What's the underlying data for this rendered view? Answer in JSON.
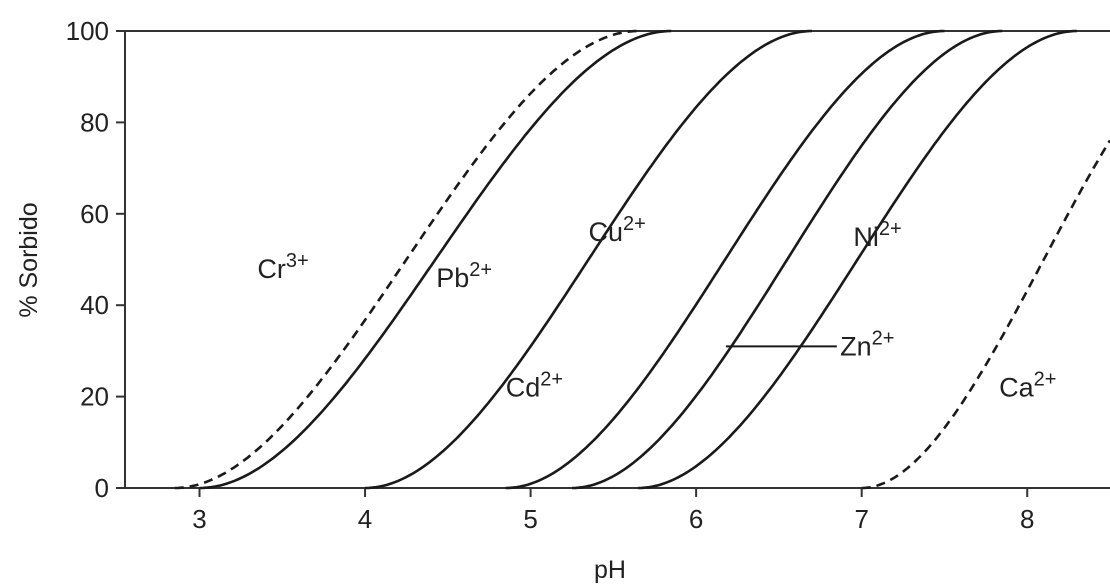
{
  "chart_data": {
    "type": "line",
    "title": "",
    "xlabel": "pH",
    "ylabel": "% Sorbido",
    "xlim": [
      2.55,
      8.5
    ],
    "ylim": [
      0,
      100
    ],
    "xticks": [
      3,
      4,
      5,
      6,
      7,
      8
    ],
    "yticks": [
      0,
      20,
      40,
      60,
      80,
      100
    ],
    "grid": false,
    "series": [
      {
        "name": "Cr3+",
        "label_base": "Cr",
        "label_sup": "3+",
        "style": "dashed",
        "midpoint": 4.0,
        "start": 2.85,
        "end": 5.65
      },
      {
        "name": "Pb2+",
        "label_base": "Pb",
        "label_sup": "2+",
        "style": "solid",
        "midpoint": 4.3,
        "start": 3.0,
        "end": 5.85
      },
      {
        "name": "Cu2+",
        "label_base": "Cu",
        "label_sup": "2+",
        "style": "solid",
        "midpoint": 5.1,
        "start": 4.0,
        "end": 6.7
      },
      {
        "name": "Cd2+",
        "label_base": "Cd",
        "label_sup": "2+",
        "style": "solid",
        "midpoint": 5.95,
        "start": 4.85,
        "end": 7.5
      },
      {
        "name": "Zn2+",
        "label_base": "Zn",
        "label_sup": "2+",
        "style": "solid",
        "midpoint": 6.3,
        "start": 5.25,
        "end": 7.85
      },
      {
        "name": "Ni2+",
        "label_base": "Ni",
        "label_sup": "2+",
        "style": "solid",
        "midpoint": 6.75,
        "start": 5.65,
        "end": 8.3
      },
      {
        "name": "Ca2+",
        "label_base": "Ca",
        "label_sup": "2+",
        "style": "dashed",
        "midpoint": 8.05,
        "start": 7.0,
        "end": 8.5
      }
    ]
  }
}
